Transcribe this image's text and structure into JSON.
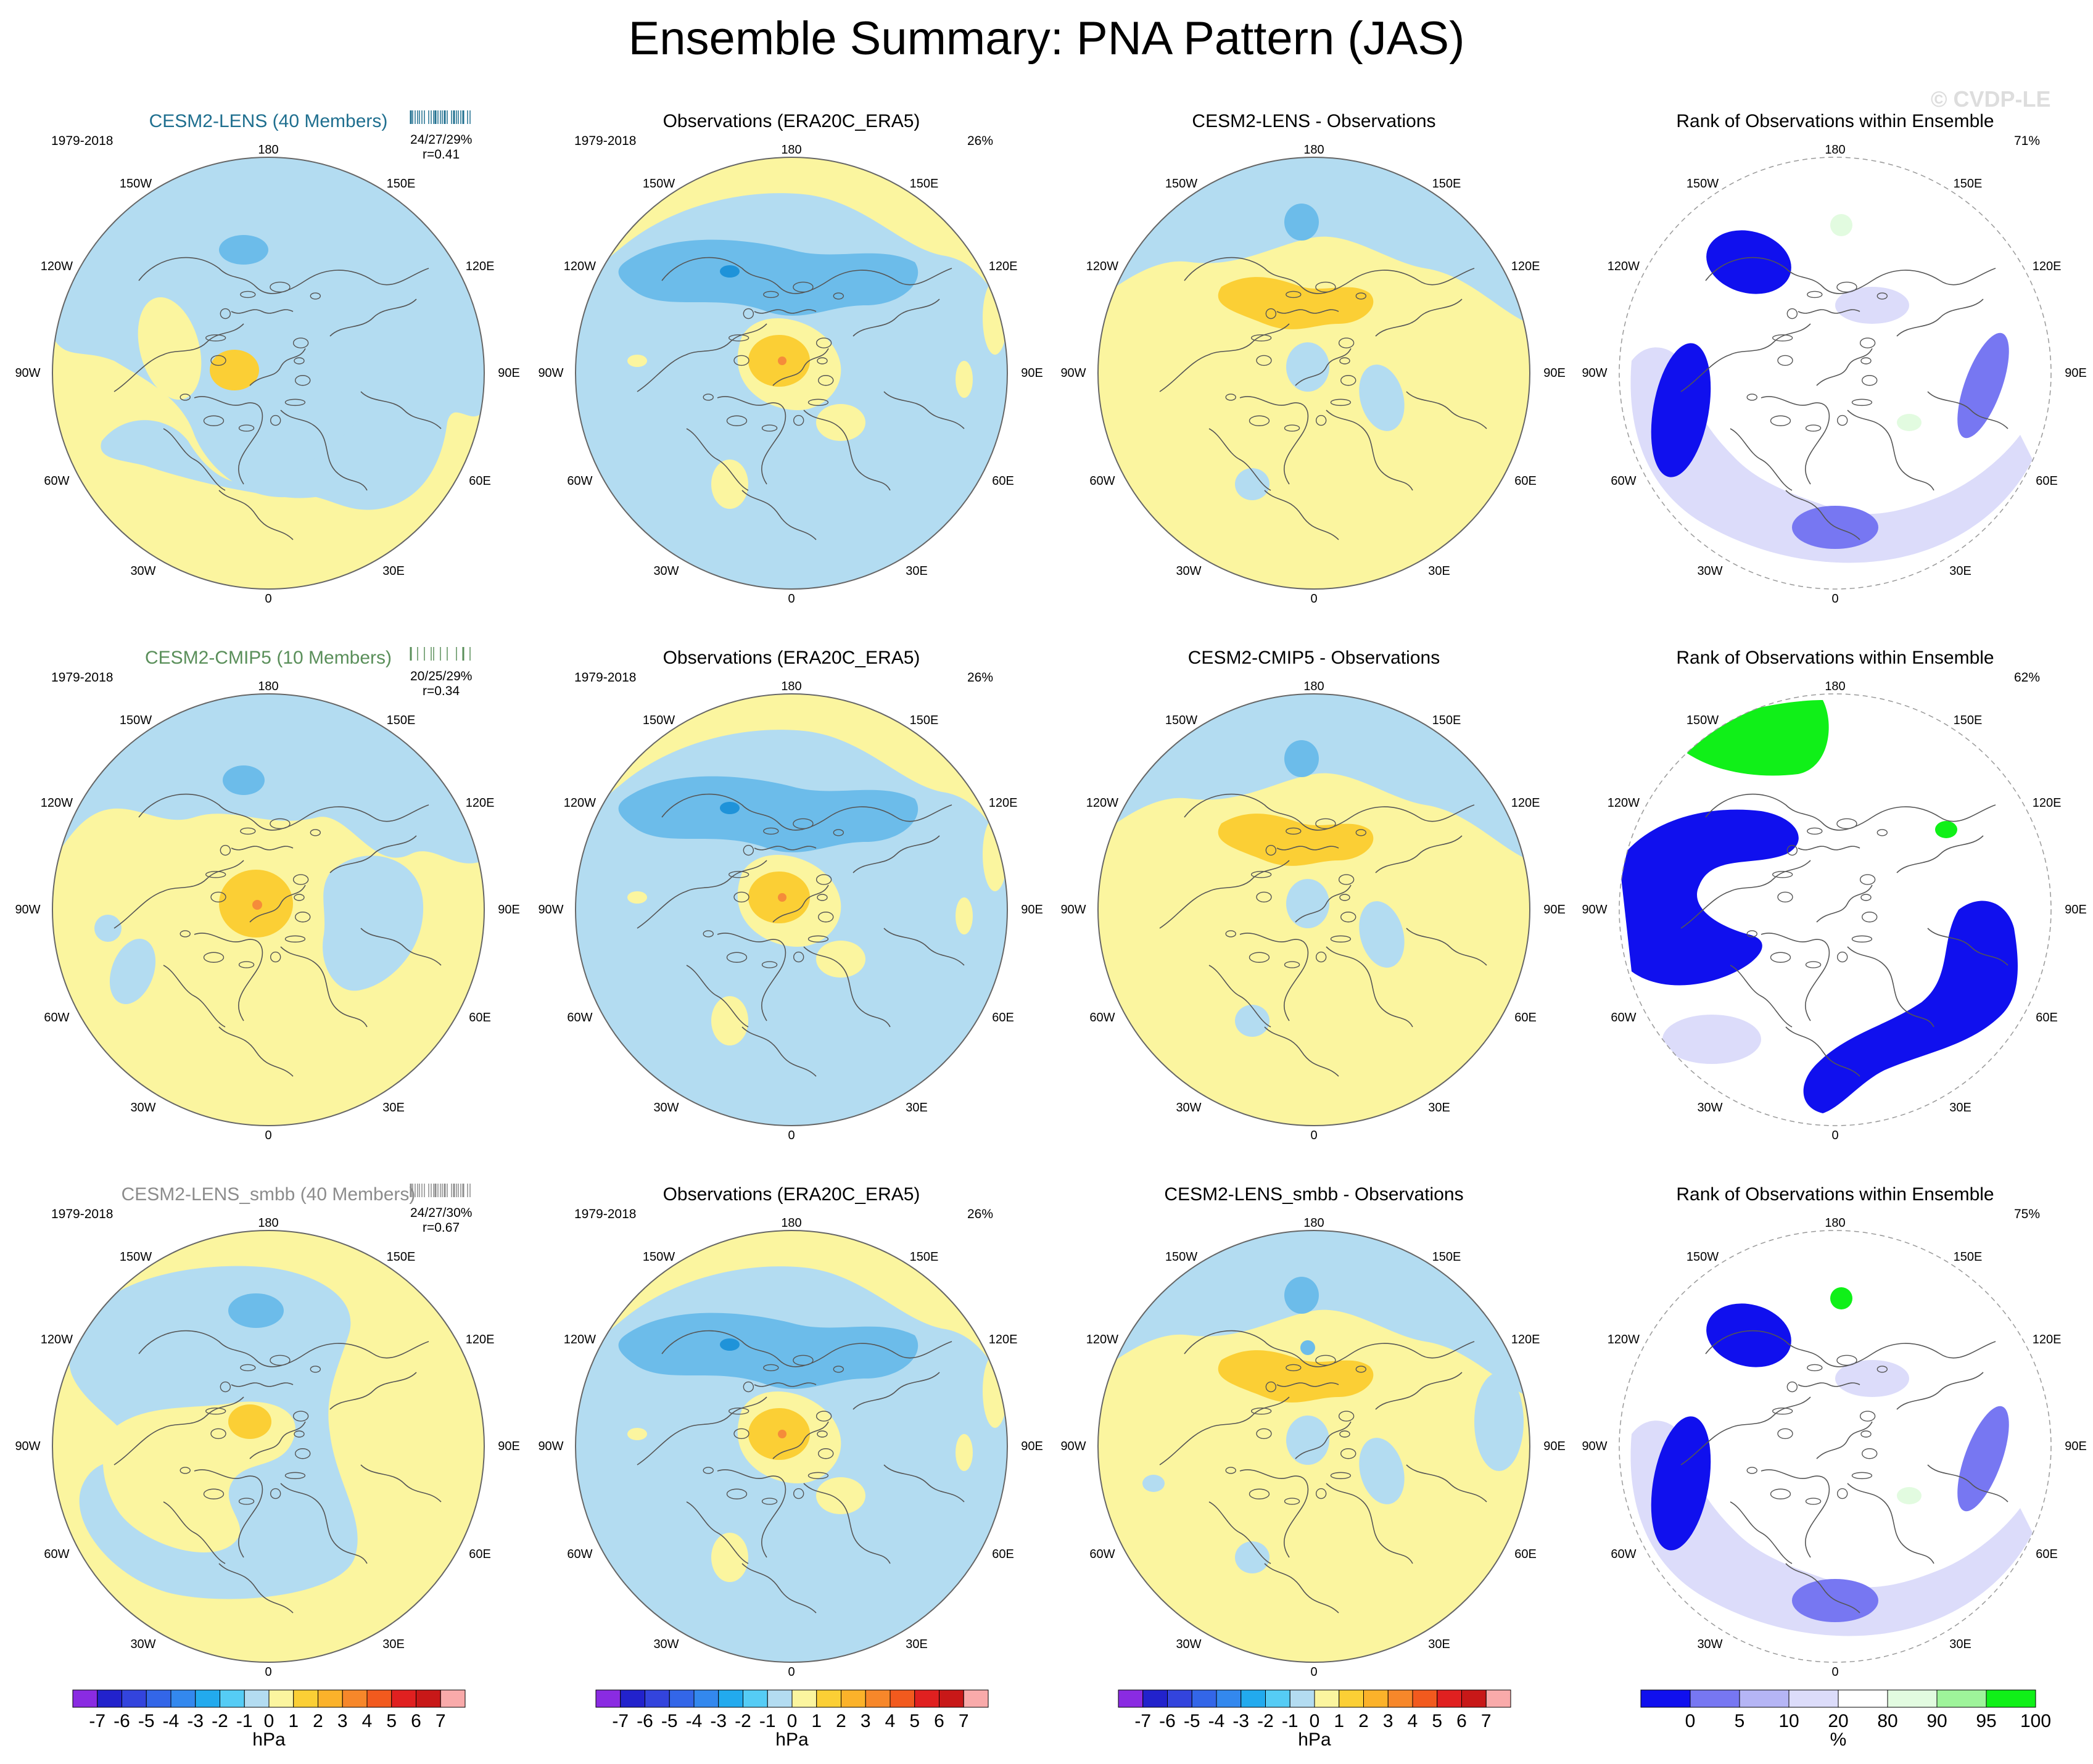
{
  "title": "Ensemble Summary: PNA Pattern (JAS)",
  "watermark": "© CVDP-LE",
  "colors": {
    "light_blue": "#b3dcf1",
    "light_yellow": "#fbf59f",
    "mid_blue": "#6cbcea",
    "deep_blue": "#1f93d9",
    "mid_yellow": "#fbcf35",
    "orange": "#f58c3a",
    "rank_dark_blue": "#1010ee",
    "rank_mid_blue": "#7777f2",
    "rank_light_blue": "#dcdcfa",
    "rank_light_green": "#e2fbe0",
    "rank_green": "#10f018"
  },
  "labels": {
    "north": "180",
    "south": "0",
    "w150": "150W",
    "e150": "150E",
    "w120": "120W",
    "e120": "120E",
    "w90": "90W",
    "e90": "90E",
    "w60": "60W",
    "e60": "60E",
    "w30": "30W",
    "e30": "30E"
  },
  "rows": [
    {
      "model_title": "CESM2-LENS (40 Members)",
      "model_color": "#1f6f8f",
      "years": "1979-2018",
      "stats": "24/27/29%",
      "corr": "r=0.41",
      "obs_title": "Observations (ERA20C_ERA5)",
      "obs_years": "1979-2018",
      "obs_pct": "26%",
      "diff_title": "CESM2-LENS - Observations",
      "rank_title": "Rank of Observations within Ensemble",
      "rank_pct": "71%"
    },
    {
      "model_title": "CESM2-CMIP5 (10 Members)",
      "model_color": "#5a8f5a",
      "years": "1979-2018",
      "stats": "20/25/29%",
      "corr": "r=0.34",
      "obs_title": "Observations (ERA20C_ERA5)",
      "obs_years": "1979-2018",
      "obs_pct": "26%",
      "diff_title": "CESM2-CMIP5 - Observations",
      "rank_title": "Rank of Observations within Ensemble",
      "rank_pct": "62%"
    },
    {
      "model_title": "CESM2-LENS_smbb (40 Members)",
      "model_color": "#8c8c8c",
      "years": "1979-2018",
      "stats": "24/27/30%",
      "corr": "r=0.67",
      "obs_title": "Observations (ERA20C_ERA5)",
      "obs_years": "1979-2018",
      "obs_pct": "26%",
      "diff_title": "CESM2-LENS_smbb - Observations",
      "rank_title": "Rank of Observations within Ensemble",
      "rank_pct": "75%"
    }
  ],
  "colorbar_hpa": {
    "label": "hPa",
    "ticks": [
      "-7",
      "-6",
      "-5",
      "-4",
      "-3",
      "-2",
      "-1",
      "0",
      "1",
      "2",
      "3",
      "4",
      "5",
      "6",
      "7"
    ],
    "colors": [
      "#8a2be2",
      "#2222cc",
      "#3344dd",
      "#3366e8",
      "#3388ee",
      "#22aaee",
      "#55ccf5",
      "#b3dcf1",
      "#fbf59f",
      "#fbcf35",
      "#fbb22a",
      "#f7872a",
      "#f25a1e",
      "#e02020",
      "#c81818",
      "#f9aaaa"
    ]
  },
  "colorbar_rank": {
    "label": "%",
    "ticks": [
      "0",
      "5",
      "10",
      "20",
      "80",
      "90",
      "95",
      "100"
    ],
    "colors": [
      "#1010ee",
      "#7777f2",
      "#b5b5f5",
      "#dcdcfa",
      "#ffffff",
      "#e2fbe0",
      "#9ef49a",
      "#10f018"
    ]
  },
  "chart_data": {
    "type": "heatmap",
    "title": "Ensemble Summary: PNA Pattern (JAS)",
    "projection": "polar stereographic, North Pole",
    "panels_per_row": [
      "ensemble mean pattern",
      "observations pattern",
      "model minus observations",
      "rank of observations within ensemble"
    ],
    "models": [
      "CESM2-LENS",
      "CESM2-CMIP5",
      "CESM2-LENS_smbb"
    ],
    "members": [
      40,
      10,
      40
    ],
    "pct_variance_explained": [
      "24/27/29%",
      "20/25/29%",
      "24/27/30%"
    ],
    "pattern_correlation": [
      0.41,
      0.34,
      0.67
    ],
    "observations_pct_variance": "26%",
    "rank_pct": [
      "71%",
      "62%",
      "75%"
    ],
    "units_pattern": "hPa",
    "units_rank": "%",
    "contour_levels_hpa": [
      -7,
      -6,
      -5,
      -4,
      -3,
      -2,
      -1,
      0,
      1,
      2,
      3,
      4,
      5,
      6,
      7
    ],
    "rank_levels": [
      0,
      5,
      10,
      20,
      80,
      90,
      95,
      100
    ]
  }
}
